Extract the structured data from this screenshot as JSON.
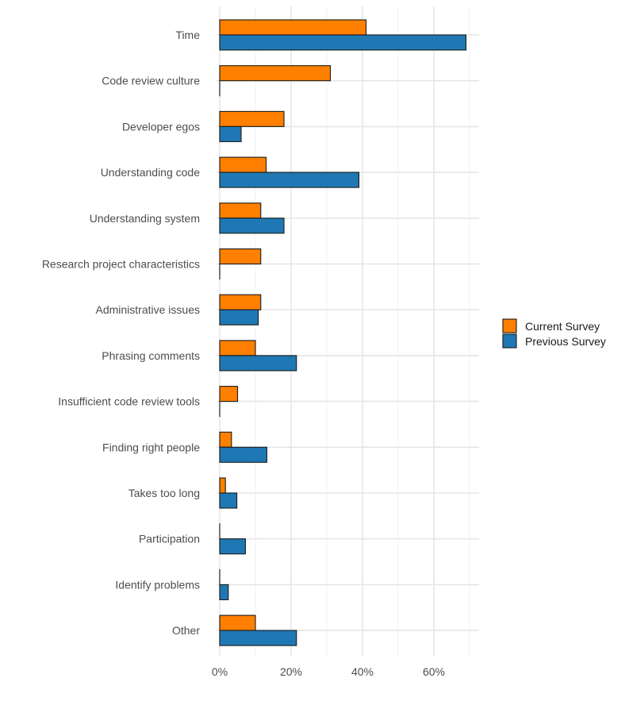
{
  "chart_data": {
    "type": "bar",
    "orientation": "horizontal",
    "categories": [
      "Time",
      "Code review culture",
      "Developer egos",
      "Understanding code",
      "Understanding system",
      "Research project characteristics",
      "Administrative issues",
      "Phrasing comments",
      "Insufficient code review tools",
      "Finding right people",
      "Takes too long",
      "Participation",
      "Identify problems",
      "Other"
    ],
    "series": [
      {
        "name": "Current Survey",
        "color": "#ff7f00",
        "values": [
          41,
          31,
          18,
          13,
          11.5,
          11.5,
          11.5,
          10,
          5,
          3.3,
          1.6,
          0,
          0,
          10
        ]
      },
      {
        "name": "Previous Survey",
        "color": "#1f78b4",
        "values": [
          69,
          0,
          6,
          39,
          18,
          0,
          10.8,
          21.5,
          0,
          13.2,
          4.8,
          7.2,
          2.4,
          21.5
        ]
      }
    ],
    "xlim": [
      0,
      72
    ],
    "xticks": [
      0,
      20,
      40,
      60
    ],
    "xtick_labels": [
      "0%",
      "20%",
      "40%",
      "60%"
    ],
    "grid": true,
    "legend_position": "right"
  }
}
